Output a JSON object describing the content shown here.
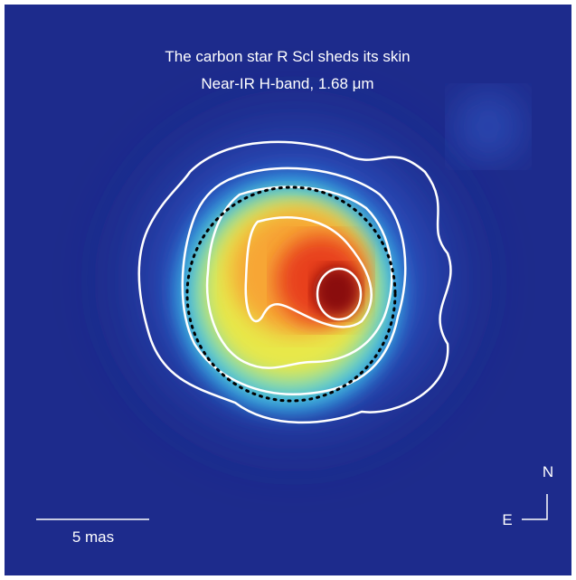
{
  "title": {
    "line1": "The carbon star R Scl sheds its skin",
    "line2": "Near-IR H-band, 1.68 μm"
  },
  "scale_bar": {
    "label": "5 mas"
  },
  "compass": {
    "north": "N",
    "east": "E"
  }
}
